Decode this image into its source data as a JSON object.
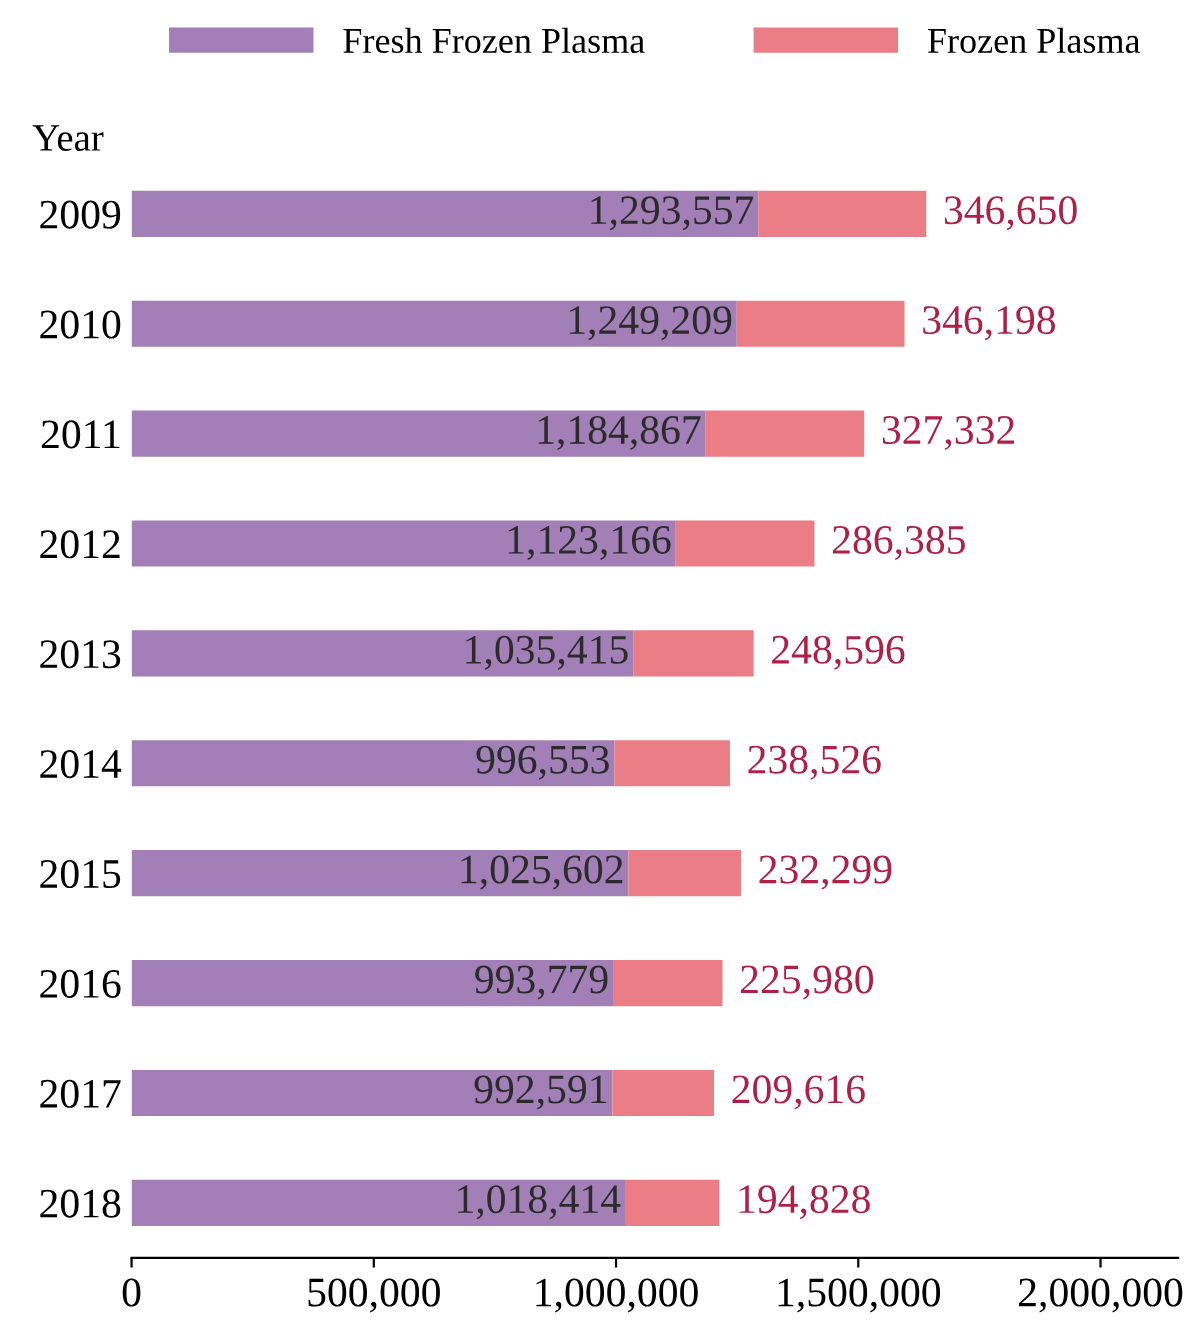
{
  "chart_data": {
    "type": "bar",
    "orientation": "horizontal",
    "stacked": true,
    "ylabel": "Year",
    "categories": [
      "2009",
      "2010",
      "2011",
      "2012",
      "2013",
      "2014",
      "2015",
      "2016",
      "2017",
      "2018"
    ],
    "series": [
      {
        "name": "Fresh Frozen Plasma",
        "color": "#a27fb6",
        "values": [
          1293557,
          1249209,
          1184867,
          1123166,
          1035415,
          996553,
          1025602,
          993779,
          992591,
          1018414
        ],
        "value_labels": [
          "1,293,557",
          "1,249,209",
          "1,184,867",
          "1,123,166",
          "1,035,415",
          "996,553",
          "1,025,602",
          "993,779",
          "992,591",
          "1,018,414"
        ]
      },
      {
        "name": "Frozen Plasma",
        "color": "#eb7d86",
        "values": [
          346650,
          346198,
          327332,
          286385,
          248596,
          238526,
          232299,
          225980,
          209616,
          194828
        ],
        "value_labels": [
          "346,650",
          "346,198",
          "327,332",
          "286,385",
          "248,596",
          "238,526",
          "232,299",
          "225,980",
          "209,616",
          "194,828"
        ]
      }
    ],
    "xlim": [
      0,
      2160000
    ],
    "xticks": [
      {
        "value": 0,
        "label": "0"
      },
      {
        "value": 500000,
        "label": "500,000"
      },
      {
        "value": 1000000,
        "label": "1,000,000"
      },
      {
        "value": 1500000,
        "label": "1,500,000"
      },
      {
        "value": 2000000,
        "label": "2,000,000"
      }
    ],
    "legend": "top",
    "grid": false
  }
}
